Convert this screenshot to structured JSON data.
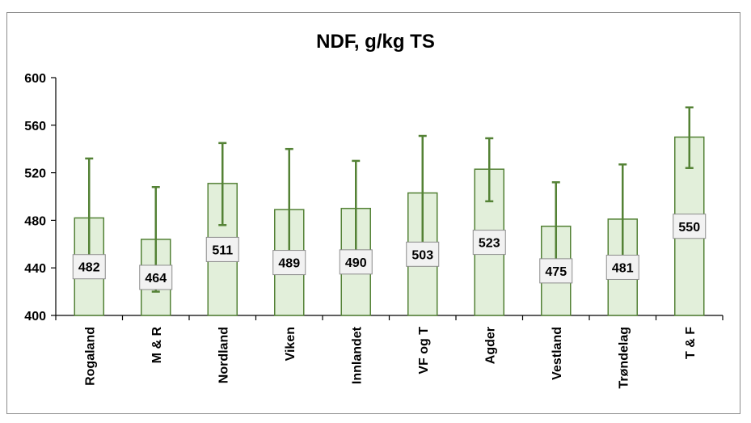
{
  "chart_data": {
    "type": "bar",
    "title": "NDF, g/kg TS",
    "xlabel": "",
    "ylabel": "",
    "ylim": [
      400,
      600
    ],
    "yticks": [
      400,
      440,
      480,
      520,
      560,
      600
    ],
    "categories": [
      "Rogaland",
      "M & R",
      "Nordland",
      "Viken",
      "Innlandet",
      "VF og T",
      "Agder",
      "Vestland",
      "Trøndelag",
      "T & F"
    ],
    "values": [
      482,
      464,
      511,
      489,
      490,
      503,
      523,
      475,
      481,
      550
    ],
    "error_upper": [
      532,
      508,
      545,
      540,
      530,
      551,
      549,
      512,
      527,
      575
    ],
    "error_lower": [
      432,
      420,
      476,
      438,
      450,
      455,
      496,
      438,
      435,
      524
    ],
    "data_labels": [
      "482",
      "464",
      "511",
      "489",
      "490",
      "503",
      "523",
      "475",
      "481",
      "550"
    ],
    "bar_fill": "#e2efda",
    "bar_stroke": "#538135",
    "error_color": "#548235",
    "grid": false,
    "legend": "none"
  }
}
